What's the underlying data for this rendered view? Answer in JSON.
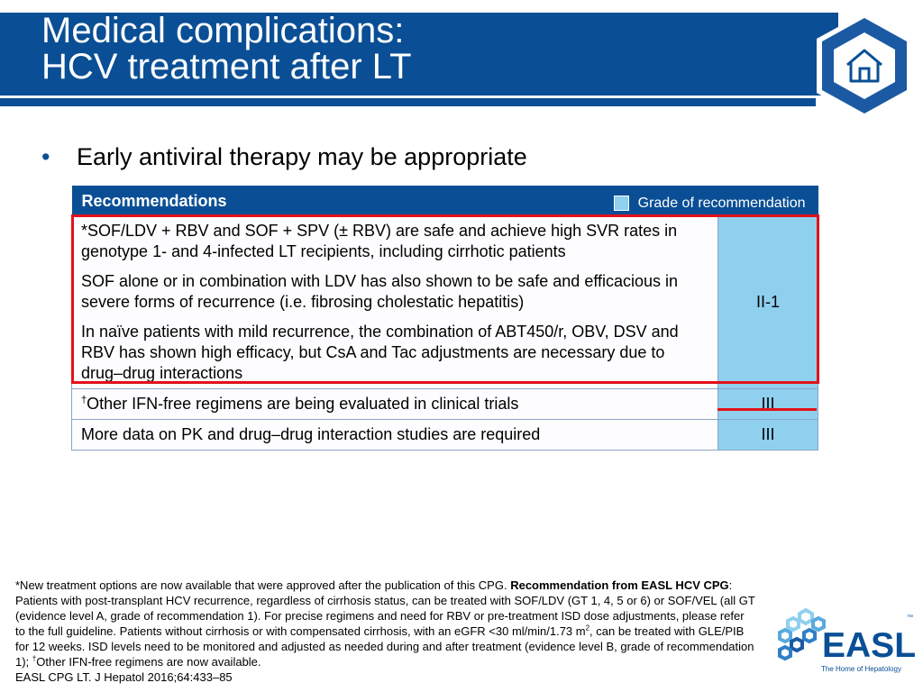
{
  "title": {
    "line1": "Medical complications:",
    "line2": "HCV treatment after LT"
  },
  "bullet": {
    "text": "Early antiviral therapy may be appropriate"
  },
  "table": {
    "header_label": "Recommendations",
    "grade_key_label": "Grade of recommendation",
    "rows": [
      {
        "paragraphs": [
          "*SOF/LDV + RBV and SOF + SPV (± RBV) are safe and achieve high SVR rates in genotype 1- and 4-infected LT recipients, including cirrhotic patients",
          "SOF alone or in combination with LDV has also shown to be safe and efficacious in severe forms of recurrence (i.e. fibrosing cholestatic hepatitis)",
          "In naïve patients with mild recurrence, the combination of ABT450/r, OBV, DSV and RBV has shown high efficacy, but CsA and Tac adjustments are necessary due to drug–drug interactions"
        ],
        "grade": "II-1"
      },
      {
        "prefix_sup": "†",
        "text": "Other IFN-free regimens are being evaluated in clinical trials",
        "grade": "III"
      },
      {
        "text": "More data on PK and drug–drug interaction studies are required",
        "grade": "III"
      }
    ]
  },
  "footnote": {
    "part1": "*New treatment options are now available that were approved after the publication of this CPG. ",
    "bold": "Recommendation from EASL HCV CPG",
    "part2": ": Patients with post-transplant HCV recurrence, regardless of cirrhosis status, can be treated with SOF/LDV (GT 1, 4, 5 or 6) or SOF/VEL (all GT (evidence level A, grade of recommendation 1). For precise regimens and need for RBV or pre-treatment ISD dose adjustments, please refer to the full guideline. Patients without cirrhosis or with compensated cirrhosis, with an eGFR <30 ml/min/1.73 m",
    "sup2": "2",
    "part3": ", can be treated with GLE/PIB for 12 weeks. ISD levels need to be monitored and adjusted as needed during and after treatment (evidence level B, grade of recommendation 1); ",
    "dagger": "†",
    "part4": "Other IFN-free regimens are now available.",
    "citation": "EASL CPG LT. J Hepatol 2016;64:433–85"
  },
  "logo": {
    "word": "EASL",
    "tm": "™",
    "tagline": "The Home of Hepatology"
  },
  "colors": {
    "brand_blue": "#0a4f95",
    "grade_fill": "#8fd0ef",
    "highlight_red": "#e3101a"
  },
  "icons": {
    "home_badge": "home-icon",
    "logo_mark": "hexagon-cluster-icon"
  }
}
